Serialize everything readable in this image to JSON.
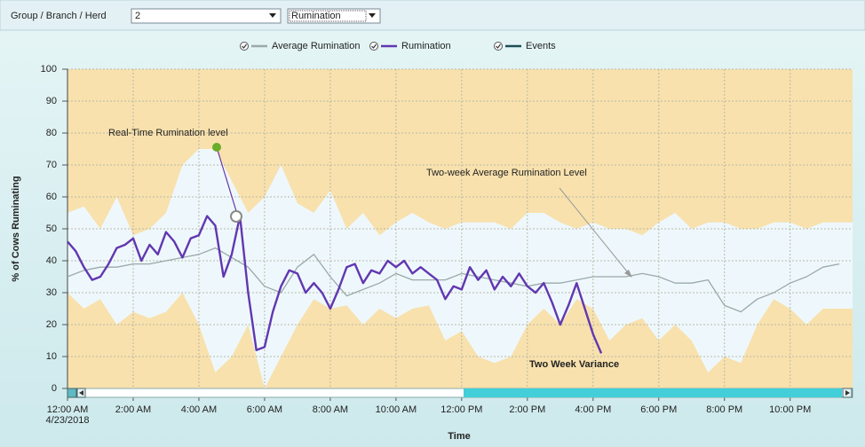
{
  "toolbar": {
    "label": "Group / Branch / Herd",
    "group_value": "2",
    "metric_value": "Rumination"
  },
  "chart_data": {
    "type": "line",
    "y_label": "% of Cows Ruminating",
    "x_label": "Time",
    "x_date": "4/23/2018",
    "xlim": [
      0,
      23.9
    ],
    "ylim": [
      0,
      100
    ],
    "yticks": [
      0,
      10,
      20,
      30,
      40,
      50,
      60,
      70,
      80,
      90,
      100
    ],
    "xticks": [
      {
        "value": 0,
        "label": "12:00 AM"
      },
      {
        "value": 2,
        "label": "2:00 AM"
      },
      {
        "value": 4,
        "label": "4:00 AM"
      },
      {
        "value": 6,
        "label": "6:00 AM"
      },
      {
        "value": 8,
        "label": "8:00 AM"
      },
      {
        "value": 10,
        "label": "10:00 AM"
      },
      {
        "value": 12,
        "label": "12:00 PM"
      },
      {
        "value": 14,
        "label": "2:00 PM"
      },
      {
        "value": 16,
        "label": "4:00 PM"
      },
      {
        "value": 18,
        "label": "6:00 PM"
      },
      {
        "value": 20,
        "label": "8:00 PM"
      },
      {
        "value": 22,
        "label": "10:00 PM"
      }
    ],
    "grid": true,
    "series": [
      {
        "name": "Average Rumination",
        "color": "#9aa9a9",
        "x": [
          0,
          0.5,
          1,
          1.5,
          2,
          2.5,
          3,
          3.5,
          4,
          4.5,
          5,
          5.5,
          6,
          6.5,
          7,
          7.5,
          8,
          8.5,
          9,
          9.5,
          10,
          10.5,
          11,
          11.5,
          12,
          12.5,
          13,
          13.5,
          14,
          14.5,
          15,
          15.5,
          16,
          16.5,
          17,
          17.5,
          18,
          18.5,
          19,
          19.5,
          20,
          20.5,
          21,
          21.5,
          22,
          22.5,
          23,
          23.5
        ],
        "values": [
          35,
          37,
          38,
          38,
          39,
          39,
          40,
          41,
          42,
          44,
          41,
          38,
          32,
          30,
          38,
          42,
          35,
          29,
          31,
          33,
          36,
          34,
          34,
          34,
          36,
          35,
          34,
          33,
          32,
          33,
          33,
          34,
          35,
          35,
          35,
          36,
          35,
          33,
          33,
          34,
          26,
          24,
          28,
          30,
          33,
          35,
          38,
          39
        ]
      },
      {
        "name": "Rumination",
        "color": "#6237b0",
        "x": [
          0,
          0.25,
          0.5,
          0.75,
          1,
          1.25,
          1.5,
          1.75,
          2,
          2.25,
          2.5,
          2.75,
          3,
          3.25,
          3.5,
          3.75,
          4,
          4.25,
          4.5,
          4.75,
          5,
          5.25,
          5.5,
          5.75,
          6,
          6.25,
          6.5,
          6.75,
          7,
          7.25,
          7.5,
          7.75,
          8,
          8.25,
          8.5,
          8.75,
          9,
          9.25,
          9.5,
          9.75,
          10,
          10.25,
          10.5,
          10.75,
          11,
          11.25,
          11.5,
          11.75,
          12,
          12.25,
          12.5,
          12.75,
          13,
          13.25,
          13.5,
          13.75,
          14,
          14.25,
          14.5,
          14.75,
          15,
          15.25,
          15.5,
          15.75,
          16,
          16.25
        ],
        "values": [
          46,
          43,
          38,
          34,
          35,
          39,
          44,
          45,
          47,
          40,
          45,
          42,
          49,
          46,
          41,
          47,
          48,
          54,
          51,
          35,
          42,
          54,
          30,
          12,
          13,
          24,
          32,
          37,
          36,
          30,
          33,
          30,
          25,
          31,
          38,
          39,
          33,
          37,
          36,
          40,
          38,
          40,
          36,
          38,
          36,
          34,
          28,
          32,
          31,
          38,
          34,
          37,
          31,
          35,
          32,
          36,
          32,
          30,
          33,
          27,
          20,
          26,
          33,
          25,
          17,
          11
        ]
      },
      {
        "name": "Events",
        "color": "#1d4d55",
        "x": [],
        "values": []
      }
    ],
    "variance": {
      "color": "#eef8fc",
      "outside_color": "#f8dea4",
      "x": [
        0,
        0.5,
        1,
        1.5,
        2,
        2.5,
        3,
        3.5,
        4,
        4.5,
        5,
        5.5,
        6,
        6.5,
        7,
        7.5,
        8,
        8.5,
        9,
        9.5,
        10,
        10.5,
        11,
        11.5,
        12,
        12.5,
        13,
        13.5,
        14,
        14.5,
        15,
        15.5,
        16,
        16.5,
        17,
        17.5,
        18,
        18.5,
        19,
        19.5,
        20,
        20.5,
        21,
        21.5,
        22,
        22.5,
        23,
        23.5
      ],
      "upper": [
        55,
        57,
        50,
        60,
        48,
        50,
        55,
        70,
        75,
        75,
        65,
        55,
        60,
        70,
        58,
        55,
        62,
        50,
        55,
        48,
        52,
        55,
        52,
        50,
        52,
        52,
        52,
        50,
        55,
        55,
        52,
        50,
        52,
        50,
        50,
        48,
        52,
        55,
        50,
        52,
        52,
        50,
        50,
        52,
        52,
        50,
        52,
        52
      ],
      "lower": [
        30,
        25,
        28,
        20,
        24,
        22,
        24,
        30,
        20,
        5,
        10,
        20,
        0,
        10,
        20,
        28,
        25,
        26,
        20,
        25,
        22,
        25,
        26,
        15,
        18,
        10,
        8,
        10,
        20,
        25,
        20,
        28,
        25,
        15,
        20,
        22,
        15,
        20,
        15,
        5,
        10,
        8,
        20,
        28,
        25,
        20,
        25,
        25
      ]
    },
    "annotations": [
      {
        "text": "Real-Time Rumination level",
        "color": "#6a32a8"
      },
      {
        "text": "Two-week Average Rumination Level",
        "color": "#a8a8a8"
      },
      {
        "text": "Two Week Variance",
        "color": "#ffffff"
      }
    ]
  }
}
